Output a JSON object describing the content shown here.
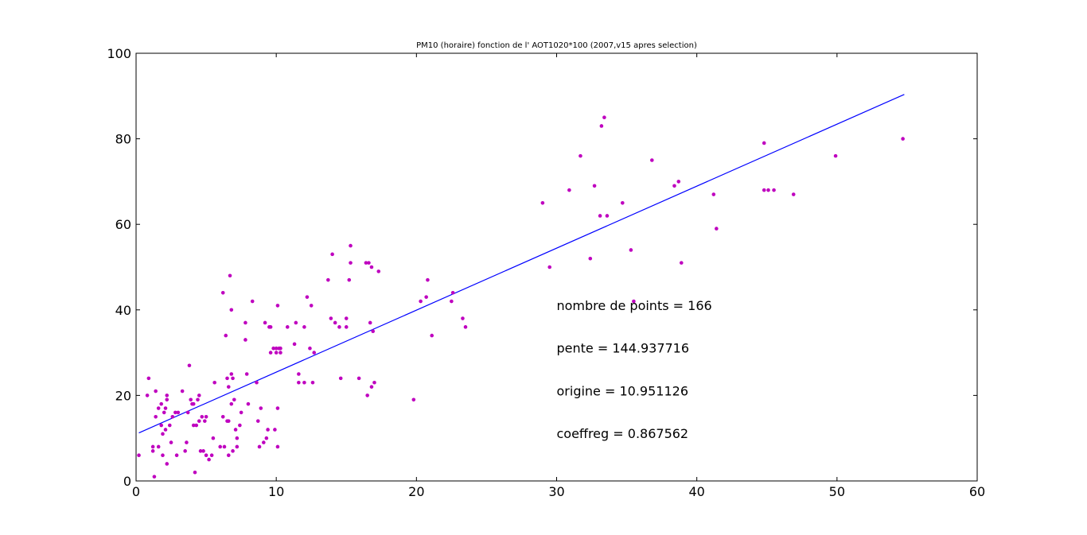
{
  "chart_data": {
    "type": "scatter",
    "title": "PM10 (horaire) fonction de l' AOT1020*100 (2007,v15 apres selection)",
    "xlabel": "",
    "ylabel": "",
    "xlim": [
      0,
      60
    ],
    "ylim": [
      0,
      100
    ],
    "xticks": [
      0,
      10,
      20,
      30,
      40,
      50,
      60
    ],
    "yticks": [
      0,
      20,
      40,
      60,
      80,
      100
    ],
    "grid": false,
    "point_color": "#bf00bf",
    "line_color": "#0000ff",
    "annotations": [
      "nombre de points = 166",
      "pente = 144.937716",
      "origine = 10.951126",
      "coeffreg = 0.867562"
    ],
    "regression": {
      "slope_per_x_unit": 1.44937716,
      "intercept": 10.951126,
      "x_range": [
        0.2,
        54.8
      ]
    },
    "series": [
      {
        "points": [
          [
            0.2,
            6
          ],
          [
            0.8,
            20
          ],
          [
            0.9,
            24
          ],
          [
            1.2,
            8
          ],
          [
            1.2,
            7
          ],
          [
            1.3,
            1
          ],
          [
            1.4,
            15
          ],
          [
            1.4,
            21
          ],
          [
            1.6,
            8
          ],
          [
            1.6,
            17
          ],
          [
            1.8,
            18
          ],
          [
            1.8,
            13
          ],
          [
            1.9,
            6
          ],
          [
            1.9,
            11
          ],
          [
            2.0,
            16
          ],
          [
            2.1,
            17
          ],
          [
            2.1,
            12
          ],
          [
            2.2,
            19
          ],
          [
            2.2,
            20
          ],
          [
            2.2,
            4
          ],
          [
            2.4,
            13
          ],
          [
            2.5,
            9
          ],
          [
            2.6,
            15
          ],
          [
            2.8,
            16
          ],
          [
            2.9,
            6
          ],
          [
            3.0,
            16
          ],
          [
            3.3,
            21
          ],
          [
            3.5,
            7
          ],
          [
            3.6,
            9
          ],
          [
            3.7,
            16
          ],
          [
            3.8,
            27
          ],
          [
            3.9,
            19
          ],
          [
            4.0,
            18
          ],
          [
            4.1,
            18
          ],
          [
            4.1,
            13
          ],
          [
            4.2,
            2
          ],
          [
            4.3,
            13
          ],
          [
            4.4,
            19
          ],
          [
            4.5,
            20
          ],
          [
            4.5,
            14
          ],
          [
            4.6,
            7
          ],
          [
            4.7,
            15
          ],
          [
            4.8,
            7
          ],
          [
            4.9,
            14
          ],
          [
            5.0,
            6
          ],
          [
            5.0,
            15
          ],
          [
            5.2,
            5
          ],
          [
            5.4,
            6
          ],
          [
            5.5,
            10
          ],
          [
            5.6,
            23
          ],
          [
            6.0,
            8
          ],
          [
            6.2,
            44
          ],
          [
            6.2,
            15
          ],
          [
            6.3,
            8
          ],
          [
            6.4,
            34
          ],
          [
            6.5,
            24
          ],
          [
            6.5,
            14
          ],
          [
            6.6,
            14
          ],
          [
            6.6,
            22
          ],
          [
            6.6,
            6
          ],
          [
            6.7,
            48
          ],
          [
            6.8,
            40
          ],
          [
            6.8,
            25
          ],
          [
            6.8,
            18
          ],
          [
            6.9,
            7
          ],
          [
            6.9,
            24
          ],
          [
            7.0,
            19
          ],
          [
            7.1,
            12
          ],
          [
            7.2,
            10
          ],
          [
            7.2,
            8
          ],
          [
            7.4,
            13
          ],
          [
            7.5,
            16
          ],
          [
            7.8,
            37
          ],
          [
            7.8,
            33
          ],
          [
            7.9,
            25
          ],
          [
            8.0,
            18
          ],
          [
            8.3,
            42
          ],
          [
            8.6,
            23
          ],
          [
            8.7,
            14
          ],
          [
            8.8,
            8
          ],
          [
            8.9,
            17
          ],
          [
            9.1,
            9
          ],
          [
            9.2,
            37
          ],
          [
            9.3,
            10
          ],
          [
            9.4,
            12
          ],
          [
            9.5,
            36
          ],
          [
            9.6,
            36
          ],
          [
            9.6,
            30
          ],
          [
            9.8,
            31
          ],
          [
            9.9,
            12
          ],
          [
            10.0,
            31
          ],
          [
            10.0,
            30
          ],
          [
            10.1,
            41
          ],
          [
            10.1,
            8
          ],
          [
            10.1,
            17
          ],
          [
            10.2,
            31
          ],
          [
            10.3,
            30
          ],
          [
            10.3,
            31
          ],
          [
            10.8,
            36
          ],
          [
            11.3,
            32
          ],
          [
            11.4,
            37
          ],
          [
            11.6,
            25
          ],
          [
            11.6,
            23
          ],
          [
            12.0,
            36
          ],
          [
            12.0,
            23
          ],
          [
            12.2,
            43
          ],
          [
            12.4,
            31
          ],
          [
            12.5,
            41
          ],
          [
            12.6,
            23
          ],
          [
            12.7,
            30
          ],
          [
            13.7,
            47
          ],
          [
            13.9,
            38
          ],
          [
            14.0,
            53
          ],
          [
            14.2,
            37
          ],
          [
            14.5,
            36
          ],
          [
            14.6,
            24
          ],
          [
            15.0,
            36
          ],
          [
            15.0,
            38
          ],
          [
            15.2,
            47
          ],
          [
            15.3,
            51
          ],
          [
            15.3,
            55
          ],
          [
            15.9,
            24
          ],
          [
            16.4,
            51
          ],
          [
            16.5,
            20
          ],
          [
            16.6,
            51
          ],
          [
            16.7,
            37
          ],
          [
            16.8,
            50
          ],
          [
            16.8,
            22
          ],
          [
            16.9,
            35
          ],
          [
            17.0,
            23
          ],
          [
            17.3,
            49
          ],
          [
            19.8,
            19
          ],
          [
            20.3,
            42
          ],
          [
            20.7,
            43
          ],
          [
            20.8,
            47
          ],
          [
            21.1,
            34
          ],
          [
            22.5,
            42
          ],
          [
            22.6,
            44
          ],
          [
            23.3,
            38
          ],
          [
            23.5,
            36
          ],
          [
            29.0,
            65
          ],
          [
            29.5,
            50
          ],
          [
            30.9,
            68
          ],
          [
            31.7,
            76
          ],
          [
            32.4,
            52
          ],
          [
            32.7,
            69
          ],
          [
            33.1,
            62
          ],
          [
            33.2,
            83
          ],
          [
            33.4,
            85
          ],
          [
            33.6,
            62
          ],
          [
            34.7,
            65
          ],
          [
            35.3,
            54
          ],
          [
            35.5,
            42
          ],
          [
            36.8,
            75
          ],
          [
            38.4,
            69
          ],
          [
            38.7,
            70
          ],
          [
            38.9,
            51
          ],
          [
            41.2,
            67
          ],
          [
            41.4,
            59
          ],
          [
            44.8,
            79
          ],
          [
            44.8,
            68
          ],
          [
            45.1,
            68
          ],
          [
            45.5,
            68
          ],
          [
            46.9,
            67
          ],
          [
            49.9,
            76
          ],
          [
            54.7,
            80
          ]
        ]
      }
    ]
  }
}
